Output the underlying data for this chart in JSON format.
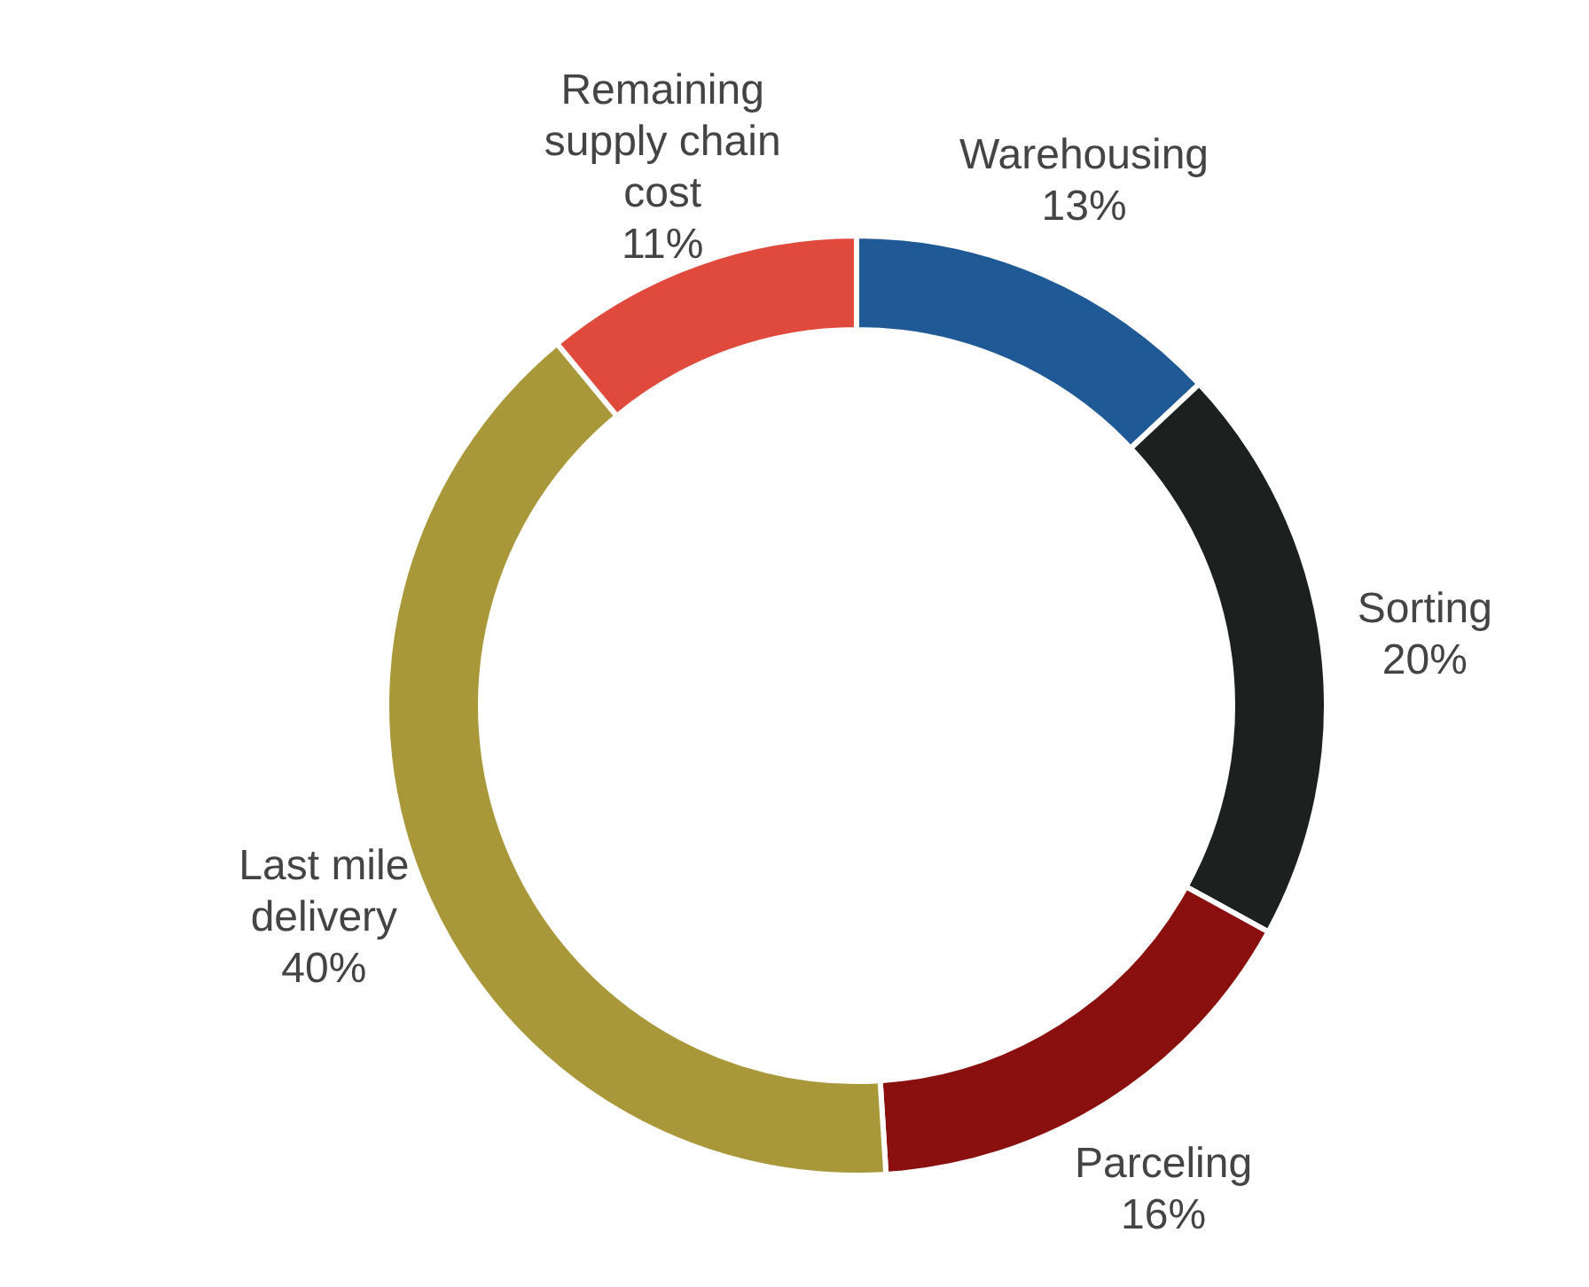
{
  "chart_data": {
    "type": "donut",
    "categories": [
      "Warehousing",
      "Sorting",
      "Parceling",
      "Last mile delivery",
      "Remaining supply chain cost"
    ],
    "values": [
      13,
      20,
      16,
      40,
      11
    ],
    "value_labels": [
      "13%",
      "20%",
      "16%",
      "40%",
      "11%"
    ],
    "colors": [
      "#1f5a96",
      "#1c2120",
      "#8a1010",
      "#a8983a",
      "#e04a3c"
    ],
    "legend": false
  }
}
